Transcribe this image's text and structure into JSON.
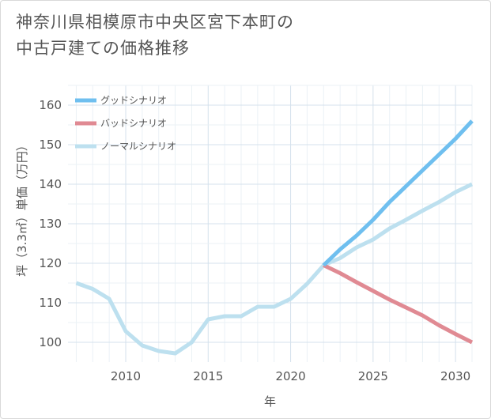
{
  "title_lines": [
    "神奈川県相模原市中央区宮下本町の",
    "中古戸建ての価格推移"
  ],
  "chart_data": {
    "type": "line",
    "title": "神奈川県相模原市中央区宮下本町の中古戸建ての価格推移",
    "xlabel": "年",
    "ylabel": "坪（3.3㎡）単価（万円）",
    "xlim": [
      2006.5,
      2031
    ],
    "ylim": [
      95,
      165
    ],
    "x_ticks": [
      2010,
      2015,
      2020,
      2025,
      2030
    ],
    "y_ticks": [
      100,
      110,
      120,
      130,
      140,
      150,
      160
    ],
    "legend_position": "top-left",
    "series": [
      {
        "name": "グッドシナリオ",
        "color": "#6fbfef",
        "x": [
          2022,
          2023,
          2024,
          2025,
          2026,
          2027,
          2028,
          2029,
          2030,
          2031
        ],
        "values": [
          119.5,
          123.5,
          127,
          131,
          135.5,
          139.5,
          143.5,
          147.5,
          151.5,
          156
        ]
      },
      {
        "name": "バッドシナリオ",
        "color": "#e08a93",
        "x": [
          2022,
          2023,
          2024,
          2025,
          2026,
          2027,
          2028,
          2029,
          2030,
          2031
        ],
        "values": [
          119.5,
          117.5,
          115.2,
          113,
          110.8,
          108.8,
          106.8,
          104.3,
          102.1,
          100
        ]
      },
      {
        "name": "ノーマルシナリオ",
        "color": "#bde0ef",
        "x": [
          2007,
          2008,
          2009,
          2010,
          2011,
          2012,
          2013,
          2014,
          2015,
          2016,
          2017,
          2018,
          2019,
          2020,
          2021,
          2022,
          2023,
          2024,
          2025,
          2026,
          2027,
          2028,
          2029,
          2030,
          2031
        ],
        "values": [
          115,
          113.5,
          111,
          102.8,
          99.2,
          97.8,
          97.2,
          100,
          105.8,
          106.6,
          106.6,
          109,
          109,
          111,
          114.8,
          119.5,
          121.3,
          124,
          126,
          128.8,
          131,
          133.3,
          135.5,
          138,
          140
        ]
      }
    ]
  }
}
